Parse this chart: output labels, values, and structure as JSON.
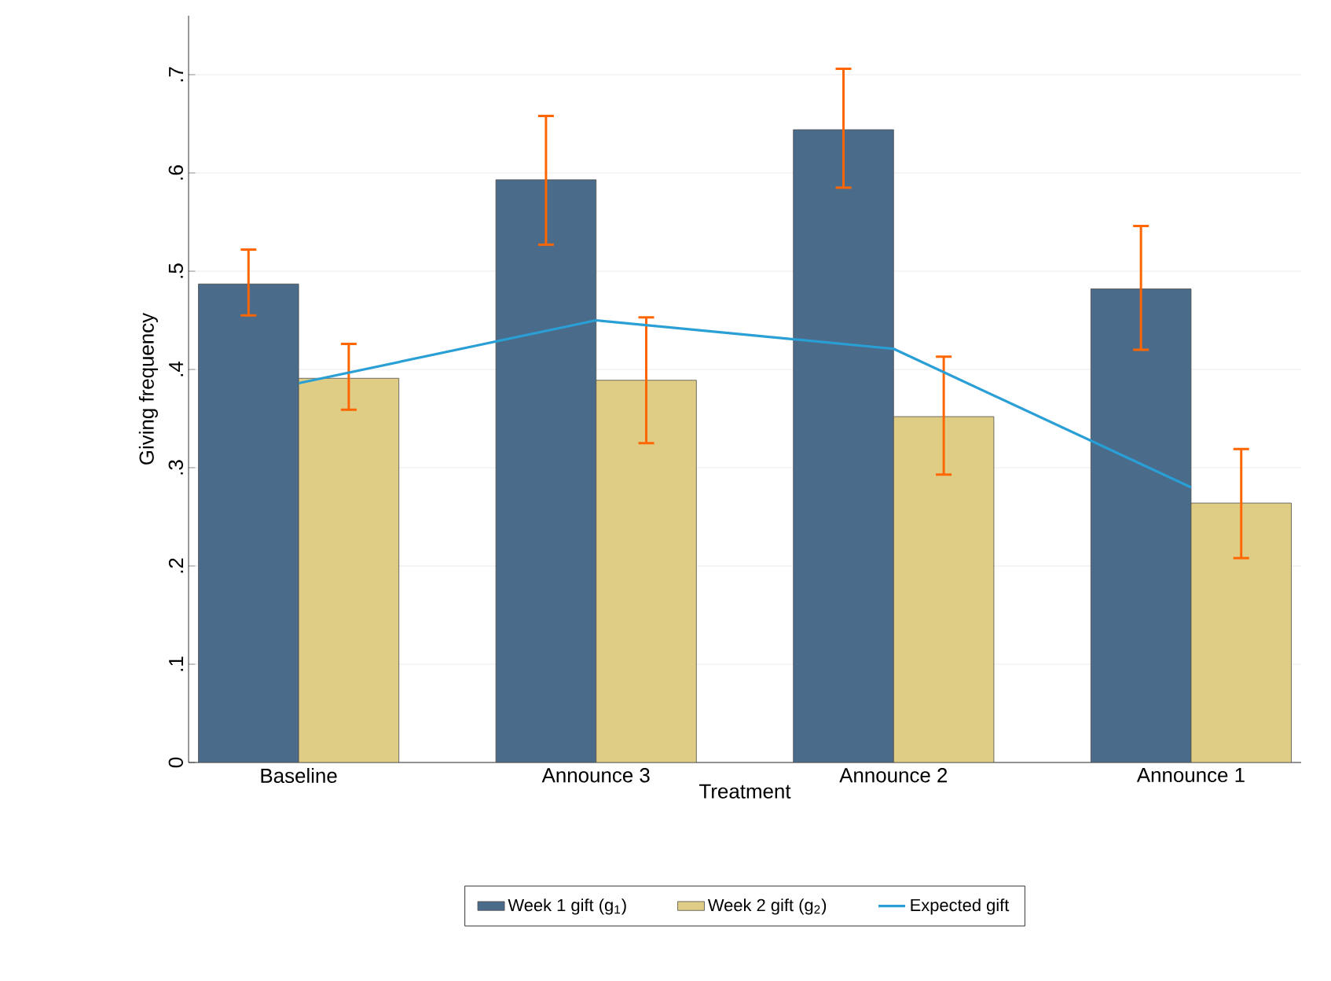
{
  "chart_data": {
    "type": "bar",
    "xlabel": "Treatment",
    "ylabel": "Giving frequency",
    "categories": [
      "Baseline",
      "Announce 3",
      "Announce 2",
      "Announce 1"
    ],
    "series": [
      {
        "name": "Week 1 gift (g$_{1}$)",
        "color": "#4a6b8a",
        "values": [
          0.487,
          0.593,
          0.644,
          0.482
        ],
        "errors": [
          [
            0.455,
            0.522
          ],
          [
            0.527,
            0.658
          ],
          [
            0.585,
            0.706
          ],
          [
            0.42,
            0.546
          ]
        ]
      },
      {
        "name": "Week 2 gift (g$_{2}$)",
        "color": "#e0cd85",
        "values": [
          0.391,
          0.389,
          0.352,
          0.264
        ],
        "errors": [
          [
            0.359,
            0.426
          ],
          [
            0.325,
            0.453
          ],
          [
            0.293,
            0.413
          ],
          [
            0.208,
            0.319
          ]
        ]
      },
      {
        "name": "Expected gift",
        "type": "line",
        "color": "#2a9fd6",
        "values": [
          0.386,
          0.45,
          0.421,
          0.28
        ]
      }
    ],
    "ylim": [
      0,
      0.76
    ],
    "yticks": [
      0,
      {
        "value": 0.1,
        "label": ".1"
      },
      {
        "value": 0.2,
        "label": ".2"
      },
      {
        "value": 0.3,
        "label": ".3"
      },
      {
        "value": 0.4,
        "label": ".4"
      },
      {
        "value": 0.5,
        "label": ".5"
      },
      {
        "value": 0.6,
        "label": ".6"
      },
      {
        "value": 0.7,
        "label": ".7"
      }
    ],
    "grid": "y",
    "legend": "bottom"
  }
}
